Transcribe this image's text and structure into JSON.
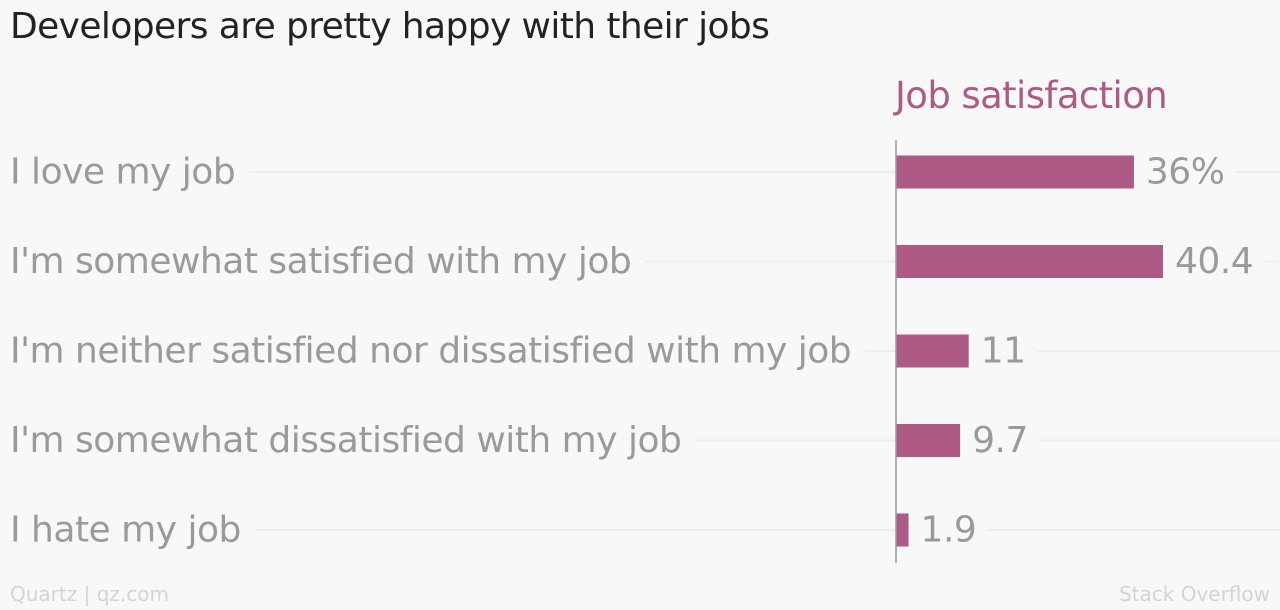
{
  "title": "Developers are pretty happy with their jobs",
  "colors": {
    "bar": "#ad5a87",
    "label": "#9a9a9a",
    "value": "#9a9a9a",
    "gridline": "#eeeeee",
    "axis": "#999999",
    "title": "#222222",
    "credit": "#d4d4d4"
  },
  "footer": {
    "source_left": "Quartz | qz.com",
    "source_right": "Stack Overflow"
  },
  "chart_data": {
    "type": "bar",
    "orientation": "horizontal",
    "series_title": "Job satisfaction",
    "categories": [
      "I love my job",
      "I'm somewhat satisfied with my job",
      "I'm neither satisfied nor dissatisfied with my job",
      "I'm somewhat dissatisfied with my job",
      "I hate my job"
    ],
    "values": [
      36,
      40.4,
      11,
      9.7,
      1.9
    ],
    "value_labels": [
      "36%",
      "40.4",
      "11",
      "9.7",
      "1.9"
    ],
    "xlim": [
      0,
      40.4
    ],
    "grid": true
  }
}
